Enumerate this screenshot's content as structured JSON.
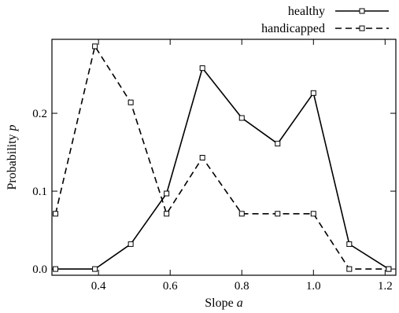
{
  "chart_data": {
    "type": "line",
    "xlabel": "Slope",
    "xlabel_var": "a",
    "ylabel": "Probability",
    "ylabel_var": "p",
    "xlim": [
      0.27,
      1.23
    ],
    "ylim": [
      -0.008,
      0.295
    ],
    "x_ticks": [
      0.4,
      0.6,
      0.8,
      1.0,
      1.2
    ],
    "x_tick_labels": [
      "0.4",
      "0.6",
      "0.8",
      "1.0",
      "1.2"
    ],
    "y_ticks": [
      0.0,
      0.1,
      0.2
    ],
    "y_tick_labels": [
      "0.0",
      "0.1",
      "0.2"
    ],
    "grid": false,
    "legend_position": "top-right",
    "series": [
      {
        "name": "healthy",
        "line_style": "solid",
        "marker": "open-square",
        "x": [
          0.28,
          0.39,
          0.49,
          0.59,
          0.69,
          0.8,
          0.9,
          1.0,
          1.1,
          1.21
        ],
        "y": [
          0.0,
          0.0,
          0.032,
          0.097,
          0.258,
          0.194,
          0.161,
          0.226,
          0.032,
          0.0
        ]
      },
      {
        "name": "handicapped",
        "line_style": "dashed",
        "marker": "open-square",
        "x": [
          0.28,
          0.39,
          0.49,
          0.59,
          0.69,
          0.8,
          0.9,
          1.0,
          1.1,
          1.21
        ],
        "y": [
          0.071,
          0.286,
          0.214,
          0.071,
          0.143,
          0.071,
          0.071,
          0.071,
          0.0,
          0.0
        ]
      }
    ]
  }
}
